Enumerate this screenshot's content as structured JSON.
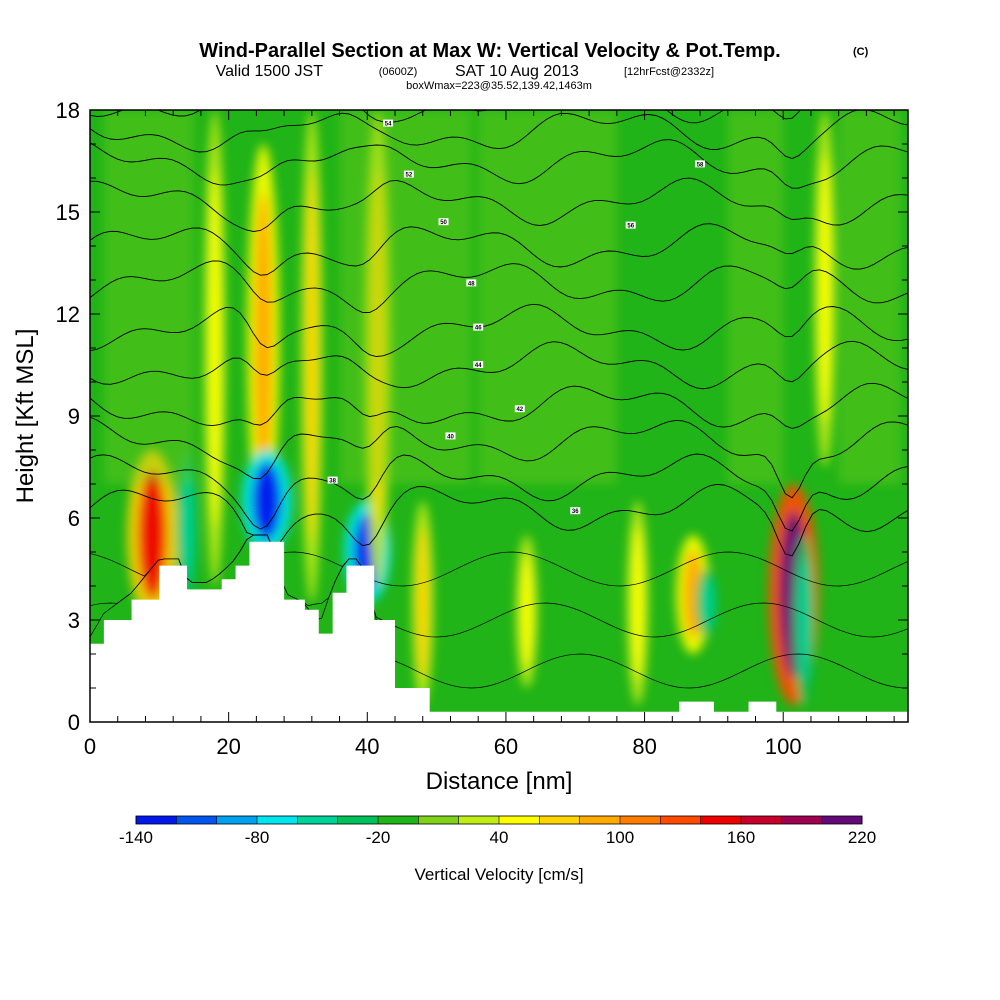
{
  "header": {
    "title": "Wind-Parallel Section at Max W: Vertical Velocity & Pot.Temp.",
    "copyright": "(C)",
    "subtitle_a": "Valid 1500 JST",
    "subtitle_b": "(0600Z)",
    "subtitle_c": "SAT 10 Aug 2013",
    "subtitle_d": "[12hrFcst@2332z]",
    "subtitle2": "boxWmax=223@35.52,139.42,1463m"
  },
  "chart_data": {
    "type": "heatmap",
    "title": "Wind-Parallel Section at Max W: Vertical Velocity & Pot.Temp.",
    "xlabel": "Distance [nm]",
    "ylabel": "Height [Kft MSL]",
    "xlim": [
      0,
      118
    ],
    "ylim": [
      0,
      18
    ],
    "x_ticks": [
      "0",
      "20",
      "40",
      "60",
      "80",
      "100"
    ],
    "y_ticks": [
      "0",
      "3",
      "6",
      "9",
      "12",
      "15",
      "18"
    ],
    "colorbar": {
      "label": "Vertical Velocity [cm/s]",
      "min": -140,
      "max": 220,
      "step": 20,
      "tick_labels": [
        "-140",
        "-80",
        "-20",
        "40",
        "100",
        "160",
        "220"
      ],
      "tick_values": [
        -140,
        -80,
        -20,
        40,
        100,
        160,
        220
      ],
      "colors": [
        "#0018ee",
        "#0055ee",
        "#00a2f0",
        "#00e6f0",
        "#00d29a",
        "#00c05a",
        "#20b418",
        "#80d21a",
        "#c2ec16",
        "#ffff00",
        "#ffd400",
        "#ffaa00",
        "#ff7c00",
        "#ff4a00",
        "#ee0000",
        "#c8002a",
        "#a00050",
        "#640a78"
      ]
    },
    "features": [
      {
        "x": 9,
        "ylow": 3.0,
        "yhigh": 8.0,
        "w": 140
      },
      {
        "x": 14,
        "ylow": 3.5,
        "yhigh": 8.0,
        "w": -60
      },
      {
        "x": 18,
        "ylow": 4.0,
        "yhigh": 18.0,
        "w": 55
      },
      {
        "x": 25,
        "ylow": 5.5,
        "yhigh": 17.0,
        "w": 90
      },
      {
        "x": 25.5,
        "ylow": 5.0,
        "yhigh": 8.0,
        "w": -140
      },
      {
        "x": 32,
        "ylow": 3.5,
        "yhigh": 18.0,
        "w": 60
      },
      {
        "x": 40,
        "ylow": 3.5,
        "yhigh": 6.5,
        "w": -130
      },
      {
        "x": 41.5,
        "ylow": 4.0,
        "yhigh": 18.0,
        "w": 70
      },
      {
        "x": 48,
        "ylow": 0.5,
        "yhigh": 6.5,
        "w": 60
      },
      {
        "x": 63,
        "ylow": 1.0,
        "yhigh": 5.5,
        "w": 50
      },
      {
        "x": 79,
        "ylow": 0.5,
        "yhigh": 6.5,
        "w": 50
      },
      {
        "x": 87,
        "ylow": 2.0,
        "yhigh": 5.5,
        "w": 95
      },
      {
        "x": 89,
        "ylow": 2.5,
        "yhigh": 4.5,
        "w": -60
      },
      {
        "x": 101.5,
        "ylow": 0.5,
        "yhigh": 7.0,
        "w": 223
      },
      {
        "x": 103,
        "ylow": 0.5,
        "yhigh": 5.5,
        "w": -60
      },
      {
        "x": 106,
        "ylow": 7.5,
        "yhigh": 18.0,
        "w": 55
      }
    ],
    "terrain": [
      [
        0,
        2.3
      ],
      [
        2,
        3.0
      ],
      [
        6,
        3.6
      ],
      [
        10,
        4.6
      ],
      [
        13,
        4.6
      ],
      [
        14,
        3.9
      ],
      [
        17,
        3.9
      ],
      [
        19,
        4.2
      ],
      [
        21,
        4.6
      ],
      [
        23,
        5.3
      ],
      [
        26,
        5.3
      ],
      [
        28,
        3.6
      ],
      [
        31,
        3.3
      ],
      [
        33,
        2.6
      ],
      [
        35,
        3.8
      ],
      [
        37,
        4.6
      ],
      [
        39,
        4.6
      ],
      [
        41,
        3.0
      ],
      [
        44,
        1.0
      ],
      [
        49,
        0.3
      ],
      [
        82,
        0.3
      ],
      [
        85,
        0.6
      ],
      [
        89,
        0.6
      ],
      [
        90,
        0.3
      ],
      [
        94,
        0.3
      ],
      [
        95,
        0.6
      ],
      [
        98,
        0.6
      ],
      [
        99,
        0.3
      ],
      [
        118,
        0.3
      ]
    ],
    "theta_contours": [
      {
        "label": "36",
        "y": 6.3,
        "lx": 70,
        "ly": 6.2
      },
      {
        "label": "38",
        "y": 7.2,
        "lx": 35,
        "ly": 7.1
      },
      {
        "label": "40",
        "y": 8.3,
        "lx": 52,
        "ly": 8.4
      },
      {
        "label": "42",
        "y": 9.3,
        "lx": 62,
        "ly": 9.2
      },
      {
        "label": "44",
        "y": 10.5,
        "lx": 56,
        "ly": 10.5
      },
      {
        "label": "46",
        "y": 11.6,
        "lx": 56,
        "ly": 11.6
      },
      {
        "label": "48",
        "y": 12.9,
        "lx": 55,
        "ly": 12.9
      },
      {
        "label": "50",
        "y": 14.0,
        "lx": 51,
        "ly": 14.7
      },
      {
        "label": "52",
        "y": 15.3,
        "lx": 46,
        "ly": 16.1
      },
      {
        "label": "54",
        "y": 16.5,
        "lx": 43,
        "ly": 17.6
      },
      {
        "label": "56",
        "y": 17.4,
        "lx": 78,
        "ly": 14.6
      },
      {
        "label": "58",
        "y": 18.3,
        "lx": 88,
        "ly": 16.4
      }
    ]
  }
}
